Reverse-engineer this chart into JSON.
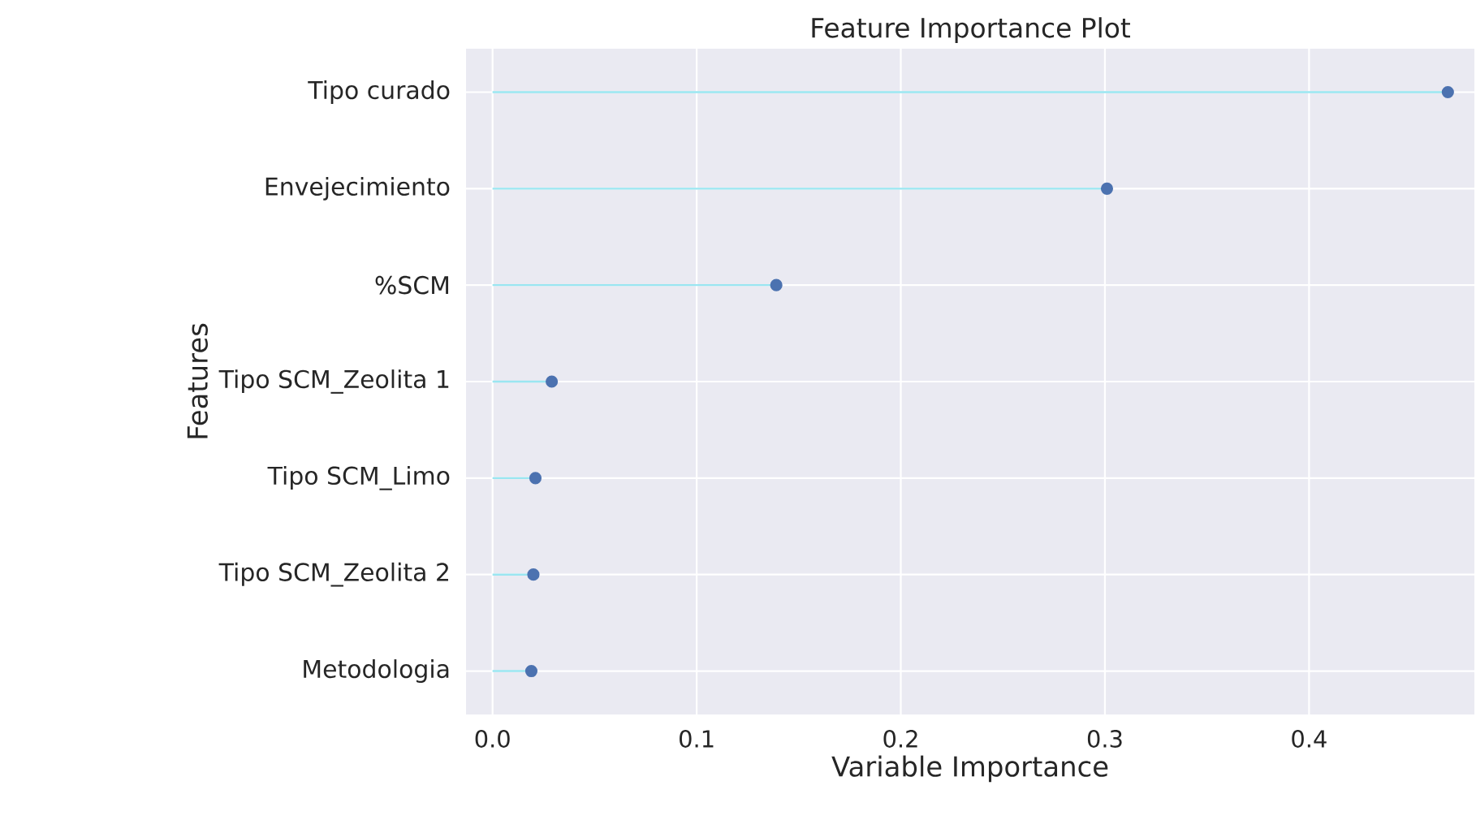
{
  "chart_data": {
    "type": "lollipop",
    "title": "Feature Importance Plot",
    "xlabel": "Variable Importance",
    "ylabel": "Features",
    "categories": [
      "Tipo curado",
      "Envejecimiento",
      "%SCM",
      "Tipo SCM_Zeolita 1",
      "Tipo SCM_Limo",
      "Tipo SCM_Zeolita 2",
      "Metodologia"
    ],
    "orientation": "horizontal",
    "series": [
      {
        "color": "#4c72b0",
        "values": [
          0.468,
          0.301,
          0.139,
          0.029,
          0.021,
          0.02,
          0.019
        ]
      }
    ],
    "xlim": [
      -0.013,
      0.481
    ],
    "xticks": [
      {
        "value": 0,
        "label": "0.0"
      },
      0.1,
      0.2,
      0.3,
      0.4
    ],
    "grid": true,
    "marker": "circle"
  }
}
